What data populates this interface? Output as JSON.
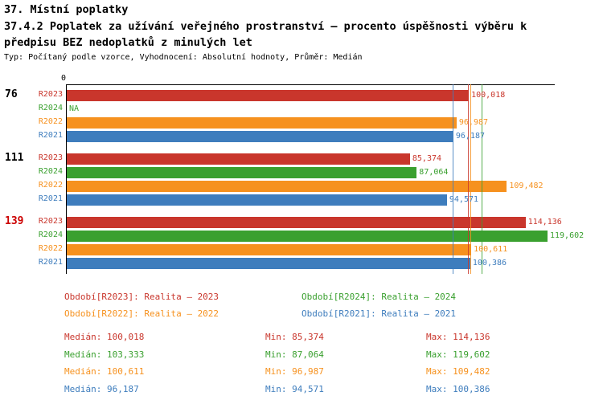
{
  "header": {
    "title": "37. Místní poplatky",
    "subtitle_line1": "37.4.2 Poplatek za užívání veřejného prostranství – procento úspěšnosti výběru k",
    "subtitle_line2": "předpisu BEZ nedoplatků z minulých let",
    "meta": "Typ: Počítaný podle vzorce, Vyhodnocení: Absolutní hodnoty, Průměr: Medián"
  },
  "colors": {
    "R2023": "#c9362c",
    "R2024": "#3aa02f",
    "R2022": "#f6911e",
    "R2021": "#3e7dbd",
    "axis": "#000000",
    "group_label_highlight": "#cc0000"
  },
  "chart_data": {
    "type": "bar",
    "orientation": "horizontal",
    "axis_origin_label": "0",
    "x_range": [
      0,
      121600
    ],
    "grid": false,
    "legend_position": "bottom",
    "groups": [
      {
        "label": "76",
        "label_color": "#000000",
        "bars": [
          {
            "series": "R2023",
            "value": 100018,
            "label": "100,018"
          },
          {
            "series": "R2024",
            "value": null,
            "label": "NA"
          },
          {
            "series": "R2022",
            "value": 96987,
            "label": "96,987"
          },
          {
            "series": "R2021",
            "value": 96187,
            "label": "96,187"
          }
        ]
      },
      {
        "label": "111",
        "label_color": "#000000",
        "bars": [
          {
            "series": "R2023",
            "value": 85374,
            "label": "85,374"
          },
          {
            "series": "R2024",
            "value": 87064,
            "label": "87,064"
          },
          {
            "series": "R2022",
            "value": 109482,
            "label": "109,482"
          },
          {
            "series": "R2021",
            "value": 94571,
            "label": "94,571"
          }
        ]
      },
      {
        "label": "139",
        "label_color": "#cc0000",
        "bars": [
          {
            "series": "R2023",
            "value": 114136,
            "label": "114,136"
          },
          {
            "series": "R2024",
            "value": 119602,
            "label": "119,602"
          },
          {
            "series": "R2022",
            "value": 100611,
            "label": "100,611"
          },
          {
            "series": "R2021",
            "value": 100386,
            "label": "100,386"
          }
        ]
      }
    ],
    "median_lines": [
      {
        "series": "R2023",
        "value": 100018
      },
      {
        "series": "R2024",
        "value": 103333
      },
      {
        "series": "R2022",
        "value": 100611
      },
      {
        "series": "R2021",
        "value": 96187
      }
    ]
  },
  "legend": [
    {
      "series": "R2023",
      "label": "Období[R2023]: Realita – 2023"
    },
    {
      "series": "R2024",
      "label": "Období[R2024]: Realita – 2024"
    },
    {
      "series": "R2022",
      "label": "Období[R2022]: Realita – 2022"
    },
    {
      "series": "R2021",
      "label": "Období[R2021]: Realita – 2021"
    }
  ],
  "stats": [
    {
      "series": "R2023",
      "median": "Medián: 100,018",
      "min": "Min: 85,374",
      "max": "Max: 114,136"
    },
    {
      "series": "R2024",
      "median": "Medián: 103,333",
      "min": "Min: 87,064",
      "max": "Max: 119,602"
    },
    {
      "series": "R2022",
      "median": "Medián: 100,611",
      "min": "Min: 96,987",
      "max": "Max: 109,482"
    },
    {
      "series": "R2021",
      "median": "Medián: 96,187",
      "min": "Min: 94,571",
      "max": "Max: 100,386"
    }
  ]
}
